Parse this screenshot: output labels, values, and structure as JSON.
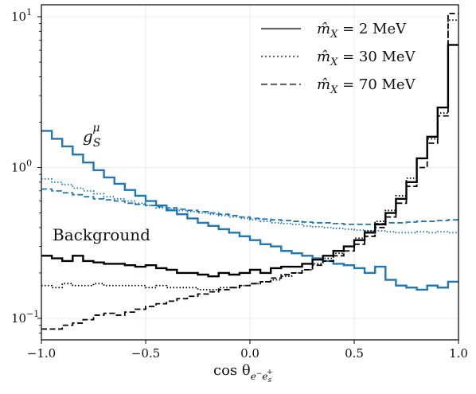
{
  "chart_data": {
    "type": "line",
    "title": "",
    "xlabel": "cos θ",
    "xlabel_sub": "e",
    "xlabel_sub_sup": "−",
    "xlabel_sub2": "e",
    "xlabel_sub2_sub": "s",
    "xlabel_sub2_sup": "+",
    "ylabel": "",
    "xlim": [
      -1.0,
      1.0
    ],
    "ylim": [
      0.072,
      12.0
    ],
    "yscale": "log",
    "grid": true,
    "x_ticks": [
      {
        "value": -1.0,
        "label": "−1.0"
      },
      {
        "value": -0.5,
        "label": "−0.5"
      },
      {
        "value": 0.0,
        "label": "0.0"
      },
      {
        "value": 0.5,
        "label": "0.5"
      },
      {
        "value": 1.0,
        "label": "1.0"
      }
    ],
    "y_ticks": [
      {
        "value": 0.1,
        "base": "10",
        "exp": "−1"
      },
      {
        "value": 1.0,
        "base": "10",
        "exp": "0"
      },
      {
        "value": 10.0,
        "base": "10",
        "exp": "1"
      }
    ],
    "bin_edges": [
      -1.0,
      -0.95,
      -0.9,
      -0.85,
      -0.8,
      -0.75,
      -0.7,
      -0.65,
      -0.6,
      -0.55,
      -0.5,
      -0.45,
      -0.4,
      -0.35,
      -0.3,
      -0.25,
      -0.2,
      -0.15,
      -0.1,
      -0.05,
      0.0,
      0.05,
      0.1,
      0.15,
      0.2,
      0.25,
      0.3,
      0.35,
      0.4,
      0.45,
      0.5,
      0.55,
      0.6,
      0.65,
      0.7,
      0.75,
      0.8,
      0.85,
      0.9,
      0.95,
      1.0
    ],
    "legend": {
      "placement": "top-right",
      "entries": [
        {
          "style": "solid",
          "label_base": "m̂",
          "label_sub": "X",
          "label_rest": " = 2 MeV"
        },
        {
          "style": "dotted",
          "label_base": "m̂",
          "label_sub": "X",
          "label_rest": " = 30 MeV"
        },
        {
          "style": "dashed",
          "label_base": "m̂",
          "label_sub": "X",
          "label_rest": " = 70 MeV"
        }
      ]
    },
    "annotations": [
      {
        "text_base": "g",
        "text_sub": "S",
        "text_sup": "μ",
        "color": "#1f77b4"
      },
      {
        "text": "Background",
        "color": "#000000"
      }
    ],
    "colors": {
      "signal": "#1f77b4",
      "background": "#000000",
      "grid": "#e6e6e6"
    },
    "series": [
      {
        "group": "signal",
        "style": "solid",
        "values": [
          1.75,
          1.55,
          1.38,
          1.22,
          1.08,
          0.96,
          0.86,
          0.78,
          0.71,
          0.65,
          0.6,
          0.56,
          0.52,
          0.49,
          0.46,
          0.43,
          0.41,
          0.39,
          0.37,
          0.35,
          0.33,
          0.31,
          0.3,
          0.28,
          0.27,
          0.26,
          0.25,
          0.24,
          0.23,
          0.225,
          0.215,
          0.2,
          0.22,
          0.18,
          0.165,
          0.16,
          0.155,
          0.165,
          0.16,
          0.175
        ]
      },
      {
        "group": "signal",
        "style": "dotted",
        "values": [
          0.84,
          0.8,
          0.77,
          0.73,
          0.7,
          0.67,
          0.64,
          0.62,
          0.6,
          0.58,
          0.56,
          0.54,
          0.53,
          0.52,
          0.51,
          0.5,
          0.49,
          0.48,
          0.47,
          0.46,
          0.45,
          0.44,
          0.43,
          0.425,
          0.42,
          0.41,
          0.405,
          0.4,
          0.395,
          0.39,
          0.385,
          0.38,
          0.38,
          0.375,
          0.37,
          0.37,
          0.375,
          0.37,
          0.375,
          0.37
        ]
      },
      {
        "group": "signal",
        "style": "dashed",
        "values": [
          0.72,
          0.7,
          0.68,
          0.66,
          0.64,
          0.62,
          0.61,
          0.6,
          0.58,
          0.57,
          0.56,
          0.55,
          0.54,
          0.53,
          0.52,
          0.51,
          0.5,
          0.49,
          0.48,
          0.47,
          0.46,
          0.455,
          0.45,
          0.445,
          0.44,
          0.435,
          0.43,
          0.43,
          0.425,
          0.42,
          0.42,
          0.42,
          0.425,
          0.43,
          0.43,
          0.435,
          0.44,
          0.44,
          0.445,
          0.45
        ]
      },
      {
        "group": "background",
        "style": "solid",
        "values": [
          0.26,
          0.25,
          0.24,
          0.26,
          0.24,
          0.235,
          0.23,
          0.23,
          0.225,
          0.22,
          0.225,
          0.215,
          0.21,
          0.2,
          0.2,
          0.195,
          0.19,
          0.2,
          0.195,
          0.2,
          0.21,
          0.2,
          0.215,
          0.22,
          0.22,
          0.23,
          0.245,
          0.26,
          0.28,
          0.3,
          0.33,
          0.37,
          0.42,
          0.5,
          0.62,
          0.8,
          1.15,
          1.6,
          2.5,
          6.5
        ]
      },
      {
        "group": "background",
        "style": "dotted",
        "values": [
          0.165,
          0.16,
          0.17,
          0.165,
          0.165,
          0.17,
          0.165,
          0.165,
          0.165,
          0.165,
          0.16,
          0.165,
          0.16,
          0.16,
          0.16,
          0.155,
          0.155,
          0.16,
          0.16,
          0.165,
          0.17,
          0.175,
          0.18,
          0.19,
          0.2,
          0.21,
          0.23,
          0.25,
          0.27,
          0.3,
          0.34,
          0.38,
          0.44,
          0.52,
          0.65,
          0.85,
          1.15,
          1.55,
          2.3,
          9.5
        ]
      },
      {
        "group": "background",
        "style": "dashed",
        "values": [
          0.085,
          0.085,
          0.09,
          0.093,
          0.098,
          0.105,
          0.108,
          0.105,
          0.11,
          0.115,
          0.12,
          0.125,
          0.13,
          0.135,
          0.14,
          0.145,
          0.15,
          0.155,
          0.16,
          0.165,
          0.17,
          0.175,
          0.185,
          0.195,
          0.2,
          0.21,
          0.225,
          0.24,
          0.26,
          0.28,
          0.31,
          0.35,
          0.4,
          0.47,
          0.58,
          0.75,
          1.0,
          1.45,
          2.2,
          10.5
        ]
      }
    ]
  }
}
